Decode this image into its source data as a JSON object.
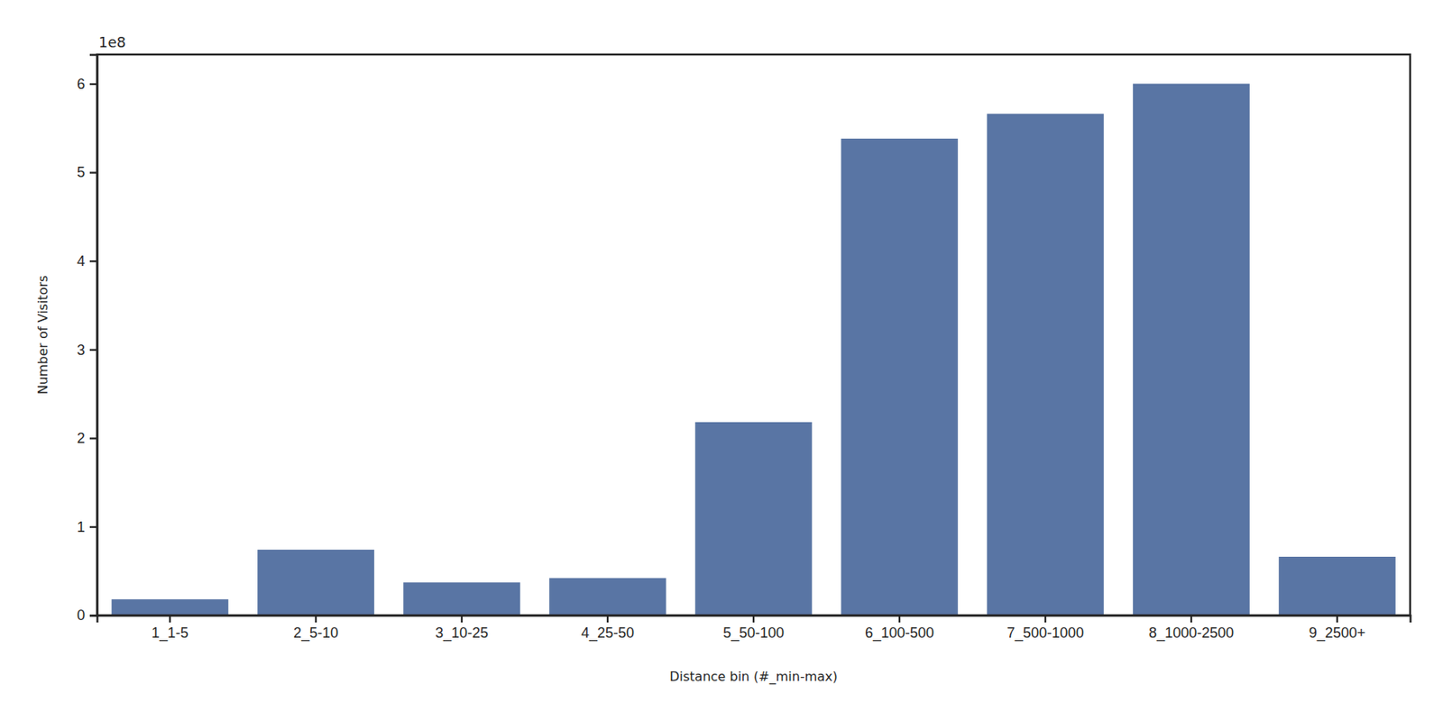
{
  "chart_data": {
    "type": "bar",
    "x_label": "Distance bin (#_min-max)",
    "y_label": "Number of Visitors",
    "annotations": [
      "1e8"
    ],
    "categories": [
      "1_1-5",
      "2_5-10",
      "3_10-25",
      "4_25-50",
      "5_50-100",
      "6_100-500",
      "7_500-1000",
      "8_1000-2500",
      "9_2500+"
    ],
    "values": [
      0.18,
      0.74,
      0.37,
      0.42,
      2.18,
      5.38,
      5.66,
      6.0,
      0.66
    ],
    "color": "#5975a4",
    "ylim": [
      0,
      6.33
    ],
    "yticks": [
      0,
      1,
      2,
      3,
      4,
      5,
      6
    ],
    "grid": false
  }
}
